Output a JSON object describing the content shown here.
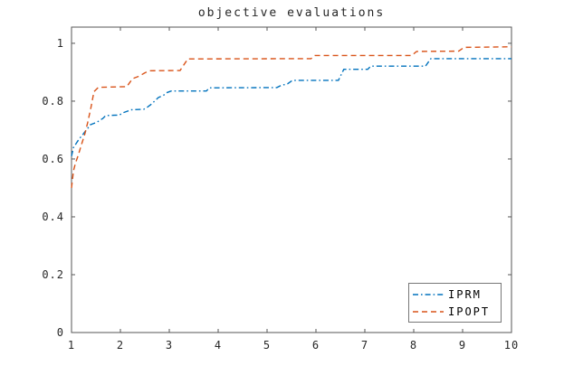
{
  "figure": {
    "background": "#ffffff"
  },
  "chart_data": {
    "type": "line",
    "title": "objective evaluations",
    "xlabel": "",
    "ylabel": "",
    "xlim": [
      1,
      10
    ],
    "ylim": [
      0,
      1.056
    ],
    "grid": false,
    "box": true,
    "axis_color": "#555555",
    "tick_label_color": "#262626",
    "title_color": "#262626",
    "xticks": [
      1,
      2,
      3,
      4,
      5,
      6,
      7,
      8,
      9,
      10
    ],
    "xtick_labels": [
      "1",
      "2",
      "3",
      "4",
      "5",
      "6",
      "7",
      "8",
      "9",
      "10"
    ],
    "yticks": [
      0,
      0.2,
      0.4,
      0.6,
      0.8,
      1
    ],
    "ytick_labels": [
      "0",
      "0.2",
      "0.4",
      "0.6",
      "0.8",
      "1"
    ],
    "legend": {
      "position": "south-east",
      "border_color": "#777777",
      "background": "#ffffff",
      "items": [
        {
          "label": "IPRM"
        },
        {
          "label": "IPOPT"
        }
      ]
    },
    "series": [
      {
        "name": "IPRM",
        "color": "#0072BD",
        "line_style": "dash-dot",
        "dasharray": "6 3 1.6 3",
        "points": [
          [
            1.0,
            0.61
          ],
          [
            1.04,
            0.64
          ],
          [
            1.1,
            0.655
          ],
          [
            1.16,
            0.67
          ],
          [
            1.22,
            0.682
          ],
          [
            1.28,
            0.695
          ],
          [
            1.33,
            0.705
          ],
          [
            1.38,
            0.718
          ],
          [
            1.44,
            0.722
          ],
          [
            1.52,
            0.727
          ],
          [
            1.58,
            0.734
          ],
          [
            1.64,
            0.74
          ],
          [
            1.7,
            0.75
          ],
          [
            1.98,
            0.752
          ],
          [
            2.06,
            0.76
          ],
          [
            2.14,
            0.765
          ],
          [
            2.22,
            0.77
          ],
          [
            2.48,
            0.772
          ],
          [
            2.56,
            0.78
          ],
          [
            2.62,
            0.788
          ],
          [
            2.7,
            0.8
          ],
          [
            2.78,
            0.813
          ],
          [
            2.88,
            0.82
          ],
          [
            2.96,
            0.83
          ],
          [
            3.04,
            0.835
          ],
          [
            3.76,
            0.835
          ],
          [
            3.82,
            0.846
          ],
          [
            5.2,
            0.847
          ],
          [
            5.28,
            0.854
          ],
          [
            5.42,
            0.86
          ],
          [
            5.52,
            0.872
          ],
          [
            6.46,
            0.872
          ],
          [
            6.57,
            0.91
          ],
          [
            7.06,
            0.91
          ],
          [
            7.12,
            0.921
          ],
          [
            8.24,
            0.921
          ],
          [
            8.35,
            0.947
          ],
          [
            10.0,
            0.947
          ]
        ]
      },
      {
        "name": "IPOPT",
        "color": "#D95319",
        "line_style": "dashed",
        "dasharray": "6 4",
        "points": [
          [
            1.0,
            0.5
          ],
          [
            1.04,
            0.56
          ],
          [
            1.08,
            0.585
          ],
          [
            1.14,
            0.615
          ],
          [
            1.2,
            0.648
          ],
          [
            1.27,
            0.685
          ],
          [
            1.33,
            0.725
          ],
          [
            1.4,
            0.78
          ],
          [
            1.46,
            0.833
          ],
          [
            1.55,
            0.848
          ],
          [
            2.13,
            0.85
          ],
          [
            2.25,
            0.878
          ],
          [
            2.38,
            0.886
          ],
          [
            2.5,
            0.898
          ],
          [
            2.6,
            0.905
          ],
          [
            3.22,
            0.906
          ],
          [
            3.38,
            0.946
          ],
          [
            5.9,
            0.947
          ],
          [
            5.98,
            0.958
          ],
          [
            7.96,
            0.958
          ],
          [
            8.06,
            0.972
          ],
          [
            8.92,
            0.973
          ],
          [
            9.03,
            0.986
          ],
          [
            10.0,
            0.988
          ]
        ]
      }
    ]
  }
}
